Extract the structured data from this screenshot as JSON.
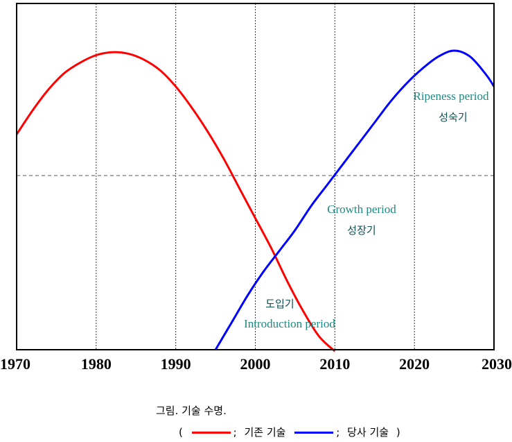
{
  "chart_data": {
    "type": "line",
    "x_ticks": [
      "1970",
      "1980",
      "1990",
      "2000",
      "2010",
      "2020",
      "2030"
    ],
    "xlim": [
      1970,
      2030
    ],
    "grid": {
      "vertical": "dotted",
      "horizontal_reference": "dashed"
    },
    "series": [
      {
        "name": "기존 기술",
        "color": "#ff0000",
        "points": [
          [
            1970,
            0.72
          ],
          [
            1972,
            0.8
          ],
          [
            1974,
            0.87
          ],
          [
            1976,
            0.925
          ],
          [
            1978,
            0.96
          ],
          [
            1980,
            0.985
          ],
          [
            1982,
            0.995
          ],
          [
            1984,
            0.99
          ],
          [
            1986,
            0.97
          ],
          [
            1988,
            0.935
          ],
          [
            1990,
            0.88
          ],
          [
            1992,
            0.81
          ],
          [
            1994,
            0.73
          ],
          [
            1996,
            0.64
          ],
          [
            1998,
            0.54
          ],
          [
            2000,
            0.44
          ],
          [
            2002,
            0.34
          ],
          [
            2004,
            0.23
          ],
          [
            2006,
            0.13
          ],
          [
            2008,
            0.045
          ],
          [
            2010,
            -0.005
          ]
        ]
      },
      {
        "name": "당사 기술",
        "color": "#0000ff",
        "points": [
          [
            1995,
            0.0
          ],
          [
            1997,
            0.09
          ],
          [
            1999,
            0.18
          ],
          [
            2001,
            0.26
          ],
          [
            2003,
            0.33
          ],
          [
            2005,
            0.4
          ],
          [
            2007,
            0.48
          ],
          [
            2009,
            0.55
          ],
          [
            2011,
            0.62
          ],
          [
            2013,
            0.69
          ],
          [
            2015,
            0.76
          ],
          [
            2017,
            0.83
          ],
          [
            2019,
            0.89
          ],
          [
            2021,
            0.94
          ],
          [
            2023,
            0.98
          ],
          [
            2025,
            1.0
          ],
          [
            2027,
            0.98
          ],
          [
            2029,
            0.92
          ],
          [
            2030,
            0.88
          ]
        ]
      }
    ],
    "annotations": [
      {
        "en": "Ripeness period",
        "ko": "성숙기"
      },
      {
        "en": "Growth period",
        "ko": "성장기"
      },
      {
        "en": "Introduction period",
        "ko": "도입기"
      }
    ]
  },
  "caption": {
    "title": "그림. 기술 수명.",
    "legend_open": "(",
    "legend_sep1": ";",
    "legend_label1": "기존 기술",
    "legend_sep2": ";",
    "legend_label2": "당사 기술",
    "legend_close": ")"
  }
}
